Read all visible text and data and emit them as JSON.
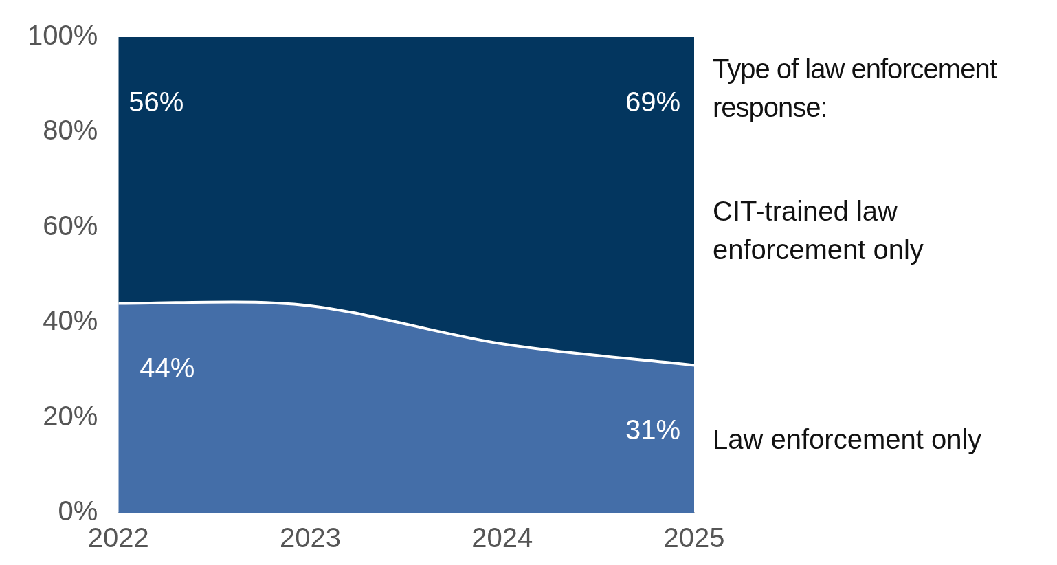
{
  "chart_data": {
    "type": "area",
    "stacked": true,
    "legend": "right",
    "legend_title": "Type of law enforcement response:",
    "x": [
      2022,
      2022.6,
      2023,
      2024,
      2025
    ],
    "xlim": [
      2022,
      2025
    ],
    "xticks": [
      2022,
      2023,
      2024,
      2025
    ],
    "ylim": [
      0,
      100
    ],
    "yticks": [
      {
        "value": 0,
        "label": "0%"
      },
      {
        "value": 20,
        "label": "20%"
      },
      {
        "value": 40,
        "label": "40%"
      },
      {
        "value": 60,
        "label": "60%"
      },
      {
        "value": 80,
        "label": "80%"
      },
      {
        "value": 100,
        "label": "100%"
      }
    ],
    "series": [
      {
        "name": "Law enforcement only",
        "color": "#446ea8",
        "values": [
          44,
          44.3,
          43.5,
          35.5,
          31
        ],
        "value_labels": [
          "44%",
          null,
          null,
          null,
          "31%"
        ]
      },
      {
        "name": "CIT-trained law enforcement only",
        "color": "#03365f",
        "values": [
          56,
          55.7,
          56.5,
          64.5,
          69
        ],
        "value_labels": [
          "56%",
          null,
          null,
          null,
          "69%"
        ]
      }
    ]
  }
}
